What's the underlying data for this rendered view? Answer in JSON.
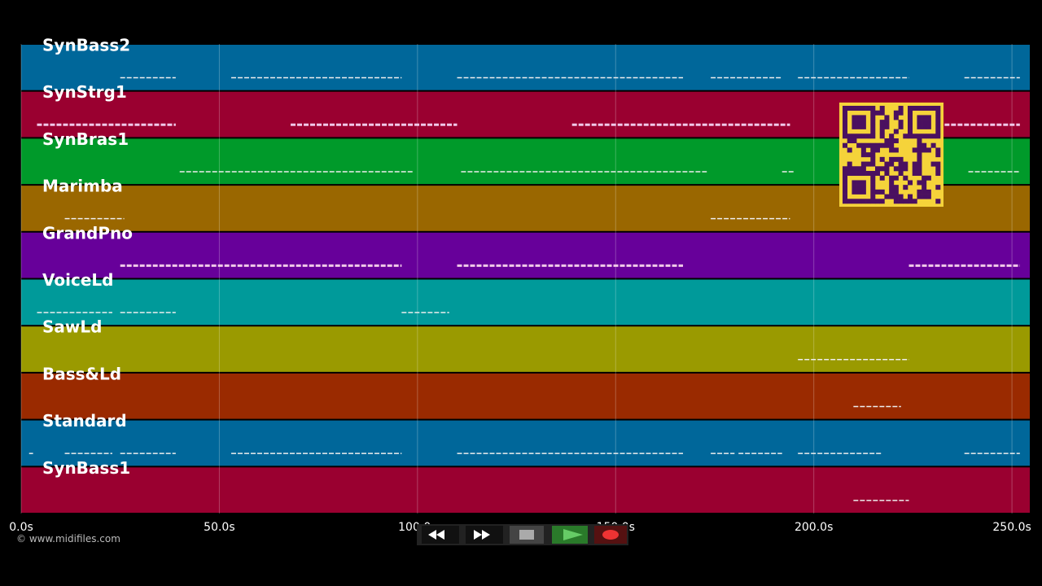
{
  "chart_data": {
    "type": "pianoroll",
    "xlim": [
      0,
      254.5
    ],
    "xticks": [
      {
        "value": 0,
        "label": "0.0s"
      },
      {
        "value": 50,
        "label": "50.0s"
      },
      {
        "value": 100,
        "label": "100.0s"
      },
      {
        "value": 150,
        "label": "150.0s"
      },
      {
        "value": 200,
        "label": "200.0s"
      },
      {
        "value": 250,
        "label": "250.0s"
      }
    ],
    "grid": true,
    "tracks": [
      {
        "name": "SynBass2",
        "color": "#00679a",
        "notes": [
          [
            25,
            39
          ],
          [
            53,
            96
          ],
          [
            110,
            167
          ],
          [
            174,
            192
          ],
          [
            196,
            224
          ],
          [
            238,
            252
          ]
        ]
      },
      {
        "name": "SynStrg1",
        "color": "#9a0030",
        "notes": [
          [
            4,
            39
          ],
          [
            68,
            110
          ],
          [
            139,
            194
          ],
          [
            233,
            252
          ]
        ]
      },
      {
        "name": "SynBras1",
        "color": "#009a2a",
        "notes": [
          [
            40,
            99
          ],
          [
            111,
            173
          ],
          [
            192,
            195
          ],
          [
            239,
            252
          ]
        ]
      },
      {
        "name": "Marimba",
        "color": "#9a6700",
        "notes": [
          [
            11,
            26
          ],
          [
            174,
            194
          ]
        ]
      },
      {
        "name": "GrandPno",
        "color": "#67009a",
        "notes": [
          [
            25,
            96
          ],
          [
            110,
            167
          ],
          [
            224,
            252
          ]
        ]
      },
      {
        "name": "VoiceLd",
        "color": "#009a9a",
        "notes": [
          [
            4,
            23
          ],
          [
            25,
            39
          ],
          [
            96,
            108
          ]
        ]
      },
      {
        "name": "SawLd",
        "color": "#9a9a00",
        "notes": [
          [
            196,
            224
          ]
        ]
      },
      {
        "name": "Bass&Ld",
        "color": "#9a2a00",
        "notes": [
          [
            210,
            222
          ]
        ]
      },
      {
        "name": "Standard",
        "color": "#00679a",
        "notes": [
          [
            2,
            3
          ],
          [
            11,
            23
          ],
          [
            25,
            39
          ],
          [
            53,
            96
          ],
          [
            110,
            167
          ],
          [
            174,
            180
          ],
          [
            181,
            192
          ],
          [
            196,
            217
          ],
          [
            238,
            252
          ]
        ]
      },
      {
        "name": "SynBass1",
        "color": "#9a0030",
        "notes": [
          [
            210,
            224
          ]
        ]
      }
    ]
  },
  "footer": {
    "copyright": "© www.midifiles.com"
  }
}
